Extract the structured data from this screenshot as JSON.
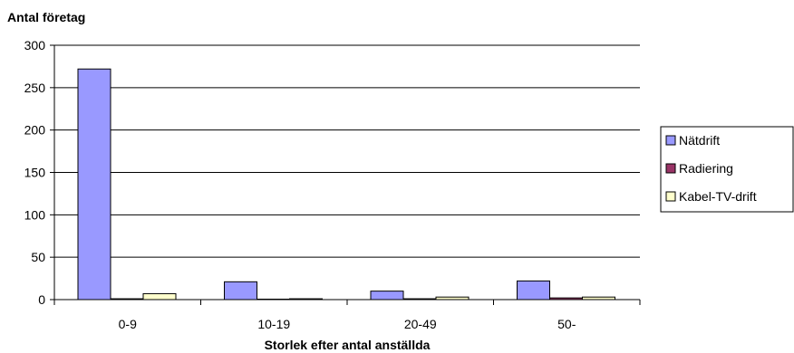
{
  "chart_data": {
    "type": "bar",
    "title": "",
    "ylabel": "Antal företag",
    "xlabel": "Storlek efter antal anställda",
    "categories": [
      "0-9",
      "10-19",
      "20-49",
      "50-"
    ],
    "ylim": [
      0,
      300
    ],
    "yticks": [
      0,
      50,
      100,
      150,
      200,
      250,
      300
    ],
    "grid": true,
    "legend_position": "right",
    "series": [
      {
        "name": "Nätdrift",
        "values": [
          272,
          21,
          10,
          22
        ],
        "color": "#9999ff"
      },
      {
        "name": "Radiering",
        "values": [
          1,
          0,
          1,
          2
        ],
        "color": "#993366"
      },
      {
        "name": "Kabel-TV-drift",
        "values": [
          7,
          1,
          3,
          3
        ],
        "color": "#ffffcc"
      }
    ]
  }
}
